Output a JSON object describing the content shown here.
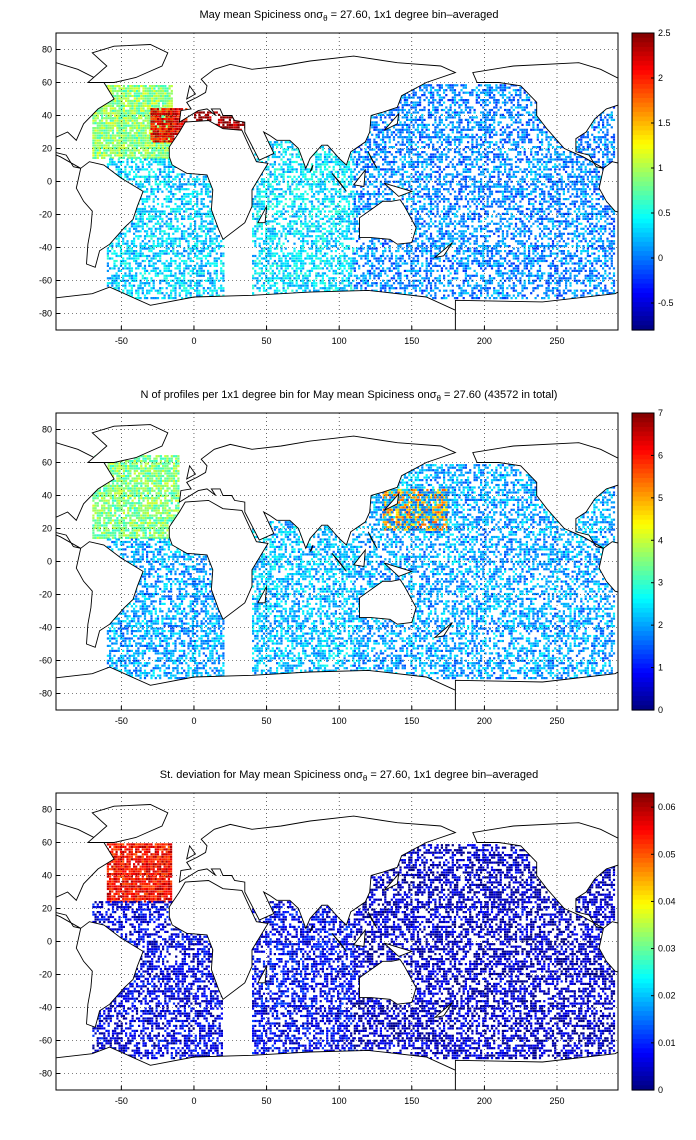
{
  "chart_data": [
    {
      "type": "heatmap",
      "title": "May mean Spiciness onσ",
      "title_sub": "θ",
      "title_rest": " = 27.60, 1x1 degree bin–averaged",
      "xlim": [
        -95,
        292
      ],
      "ylim": [
        -90,
        90
      ],
      "xticks": [
        -50,
        0,
        50,
        100,
        150,
        200,
        250
      ],
      "yticks": [
        80,
        60,
        40,
        20,
        0,
        -20,
        -40,
        -60,
        -80
      ],
      "grid": true,
      "colormap": "jet",
      "clim": [
        -0.8,
        2.5
      ],
      "colorbar_ticks": [
        "2.5",
        "2",
        "1.5",
        "1",
        "0.5",
        "0",
        "-0.5"
      ],
      "colorbar_values": [
        2.5,
        2,
        1.5,
        1,
        0.5,
        0,
        -0.5
      ],
      "regions": [
        {
          "lon": [
            -70,
            -15
          ],
          "lat": [
            15,
            60
          ],
          "value": 0.9,
          "density": 0.9
        },
        {
          "lon": [
            -30,
            -5
          ],
          "lat": [
            25,
            45
          ],
          "value": 2.1,
          "density": 0.95
        },
        {
          "lon": [
            0,
            35
          ],
          "lat": [
            32,
            44
          ],
          "value": 2.4,
          "density": 0.7
        },
        {
          "lon": [
            -60,
            20
          ],
          "lat": [
            -70,
            15
          ],
          "value": 0.3,
          "density": 0.55
        },
        {
          "lon": [
            40,
            110
          ],
          "lat": [
            -70,
            25
          ],
          "value": 0.35,
          "density": 0.55
        },
        {
          "lon": [
            110,
            290
          ],
          "lat": [
            -70,
            60
          ],
          "value": 0.05,
          "density": 0.5
        }
      ]
    },
    {
      "type": "heatmap",
      "title": "N of profiles per 1x1 degree bin for May mean Spiciness onσ",
      "title_sub": "θ",
      "title_rest": " = 27.60 (43572 in total)",
      "xlim": [
        -95,
        292
      ],
      "ylim": [
        -90,
        90
      ],
      "xticks": [
        -50,
        0,
        50,
        100,
        150,
        200,
        250
      ],
      "yticks": [
        80,
        60,
        40,
        20,
        0,
        -20,
        -40,
        -60,
        -80
      ],
      "grid": true,
      "colormap": "jet",
      "clim": [
        0,
        7
      ],
      "colorbar_ticks": [
        "7",
        "6",
        "5",
        "4",
        "3",
        "2",
        "1",
        "0"
      ],
      "colorbar_values": [
        7,
        6,
        5,
        4,
        3,
        2,
        1,
        0
      ],
      "regions": [
        {
          "lon": [
            -70,
            -10
          ],
          "lat": [
            15,
            65
          ],
          "value": 3.5,
          "density": 0.8
        },
        {
          "lon": [
            130,
            175
          ],
          "lat": [
            20,
            45
          ],
          "value": 5.0,
          "density": 0.85
        },
        {
          "lon": [
            -60,
            20
          ],
          "lat": [
            -70,
            15
          ],
          "value": 2.0,
          "density": 0.55
        },
        {
          "lon": [
            40,
            110
          ],
          "lat": [
            -70,
            25
          ],
          "value": 2.2,
          "density": 0.55
        },
        {
          "lon": [
            110,
            290
          ],
          "lat": [
            -70,
            60
          ],
          "value": 2.0,
          "density": 0.5
        }
      ]
    },
    {
      "type": "heatmap",
      "title": "St. deviation for May mean Spiciness onσ",
      "title_sub": "θ",
      "title_rest": " = 27.60, 1x1 degree bin–averaged",
      "xlim": [
        -95,
        292
      ],
      "ylim": [
        -90,
        90
      ],
      "xticks": [
        -50,
        0,
        50,
        100,
        150,
        200,
        250
      ],
      "yticks": [
        80,
        60,
        40,
        20,
        0,
        -20,
        -40,
        -60,
        -80
      ],
      "grid": true,
      "colormap": "jet",
      "clim": [
        0,
        0.063
      ],
      "colorbar_ticks": [
        "0.06",
        "0.05",
        "0.04",
        "0.03",
        "0.02",
        "0.01",
        "0"
      ],
      "colorbar_values": [
        0.06,
        0.05,
        0.04,
        0.03,
        0.02,
        0.01,
        0
      ],
      "regions": [
        {
          "lon": [
            -60,
            -15
          ],
          "lat": [
            25,
            60
          ],
          "value": 0.055,
          "density": 0.9
        },
        {
          "lon": [
            -70,
            20
          ],
          "lat": [
            -70,
            25
          ],
          "value": 0.006,
          "density": 0.55
        },
        {
          "lon": [
            40,
            110
          ],
          "lat": [
            -70,
            25
          ],
          "value": 0.007,
          "density": 0.55
        },
        {
          "lon": [
            110,
            290
          ],
          "lat": [
            -70,
            60
          ],
          "value": 0.004,
          "density": 0.55
        }
      ]
    }
  ]
}
